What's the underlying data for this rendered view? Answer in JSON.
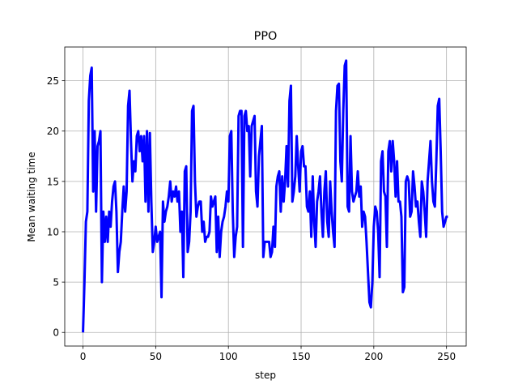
{
  "chart_data": {
    "type": "line",
    "title": "PPO",
    "xlabel": "step",
    "ylabel": "Mean waiting time",
    "x": [
      0,
      1,
      2,
      3,
      4,
      5,
      6,
      7,
      8,
      9,
      10,
      11,
      12,
      13,
      14,
      15,
      16,
      17,
      18,
      19,
      20,
      21,
      22,
      23,
      24,
      25,
      26,
      27,
      28,
      29,
      30,
      31,
      32,
      33,
      34,
      35,
      36,
      37,
      38,
      39,
      40,
      41,
      42,
      43,
      44,
      45,
      46,
      47,
      48,
      49,
      50,
      51,
      52,
      53,
      54,
      55,
      56,
      57,
      58,
      59,
      60,
      61,
      62,
      63,
      64,
      65,
      66,
      67,
      68,
      69,
      70,
      71,
      72,
      73,
      74,
      75,
      76,
      77,
      78,
      79,
      80,
      81,
      82,
      83,
      84,
      85,
      86,
      87,
      88,
      89,
      90,
      91,
      92,
      93,
      94,
      95,
      96,
      97,
      98,
      99,
      100,
      101,
      102,
      103,
      104,
      105,
      106,
      107,
      108,
      109,
      110,
      111,
      112,
      113,
      114,
      115,
      116,
      117,
      118,
      119,
      120,
      121,
      122,
      123,
      124,
      125,
      126,
      127,
      128,
      129,
      130,
      131,
      132,
      133,
      134,
      135,
      136,
      137,
      138,
      139,
      140,
      141,
      142,
      143,
      144,
      145,
      146,
      147,
      148,
      149,
      150,
      151,
      152,
      153,
      154,
      155,
      156,
      157,
      158,
      159,
      160,
      161,
      162,
      163,
      164,
      165,
      166,
      167,
      168,
      169,
      170,
      171,
      172,
      173,
      174,
      175,
      176,
      177,
      178,
      179,
      180,
      181,
      182,
      183,
      184,
      185,
      186,
      187,
      188,
      189,
      190,
      191,
      192,
      193,
      194,
      195,
      196,
      197,
      198,
      199,
      200,
      201,
      202,
      203,
      204,
      205,
      206,
      207,
      208,
      209,
      210,
      211,
      212,
      213,
      214,
      215,
      216,
      217,
      218,
      219,
      220,
      221,
      222,
      223,
      224,
      225,
      226,
      227,
      228,
      229,
      230,
      231,
      232,
      233,
      234,
      235,
      236,
      237,
      238,
      239,
      240,
      241,
      242,
      243,
      244,
      245,
      246,
      247,
      248,
      249,
      250,
      251
    ],
    "values": [
      0,
      5,
      11,
      12,
      23,
      25.5,
      26.3,
      14,
      20,
      12,
      18.5,
      19,
      20,
      5,
      12,
      9,
      11.5,
      9,
      12,
      10.5,
      13,
      14.5,
      15,
      12,
      6,
      8,
      9,
      12,
      14.5,
      12,
      14,
      22.5,
      24,
      19,
      15,
      17,
      16,
      19.5,
      20,
      18,
      19.5,
      17,
      19.5,
      13,
      20,
      12,
      19.8,
      13,
      8,
      9,
      10.5,
      9,
      9.5,
      10,
      3.5,
      13,
      11,
      12,
      12.5,
      13.5,
      15,
      13,
      14,
      13.5,
      14.5,
      13,
      14,
      10,
      12,
      5.5,
      16,
      16.5,
      8,
      9,
      12,
      22,
      22.5,
      15,
      11.5,
      12.5,
      13,
      13,
      10,
      11,
      9,
      9.5,
      9.5,
      10,
      13.5,
      12.5,
      13,
      13.5,
      8,
      11.5,
      7.5,
      10,
      11,
      11.5,
      12.5,
      14,
      13,
      19.5,
      20,
      12,
      7.5,
      9.5,
      10.5,
      21.5,
      22,
      22,
      8.5,
      21.5,
      22,
      20,
      20.5,
      15.5,
      20.5,
      21,
      21.5,
      14,
      12.5,
      17.5,
      19,
      20.5,
      7.5,
      9,
      9,
      9,
      9,
      7.5,
      8,
      10.5,
      8.5,
      14.5,
      15.5,
      16,
      12,
      15.5,
      13,
      15,
      18.5,
      14.5,
      23,
      24.5,
      13,
      14,
      15.5,
      19.5,
      16.5,
      14,
      18,
      18.5,
      16.5,
      16.5,
      12.5,
      12,
      14,
      9.5,
      15.5,
      11,
      8.5,
      13,
      14,
      15.5,
      12,
      9.5,
      14,
      16,
      11,
      9.5,
      15,
      12,
      10,
      8.5,
      22,
      24.5,
      24.7,
      17,
      15,
      22,
      26.5,
      27,
      12.5,
      12,
      19.5,
      14,
      13,
      13.5,
      14,
      16,
      13.5,
      14.5,
      10.5,
      12,
      11.5,
      9,
      6,
      3,
      2.5,
      5,
      10.5,
      12.5,
      12,
      10,
      5.5,
      17,
      18,
      14,
      13.5,
      8.5,
      18,
      19,
      16,
      19,
      17,
      13.5,
      17,
      13,
      13,
      11.5,
      4,
      4.5,
      15,
      15.5,
      15,
      11.5,
      12,
      16,
      14.5,
      12.5,
      13,
      11,
      9.5,
      15,
      14,
      12,
      9.5,
      15,
      17,
      19,
      15,
      13,
      12.5,
      17,
      22.5,
      23.2,
      18,
      12,
      10.5,
      11,
      11.5,
      11.5
    ],
    "color": "#0000ff",
    "xlim": [
      -12.55,
      263.55
    ],
    "xticks": [
      0,
      50,
      100,
      150,
      200,
      250
    ],
    "ylim": [
      -1.35,
      28.35
    ],
    "yticks": [
      0,
      5,
      10,
      15,
      20,
      25
    ],
    "grid": true
  }
}
